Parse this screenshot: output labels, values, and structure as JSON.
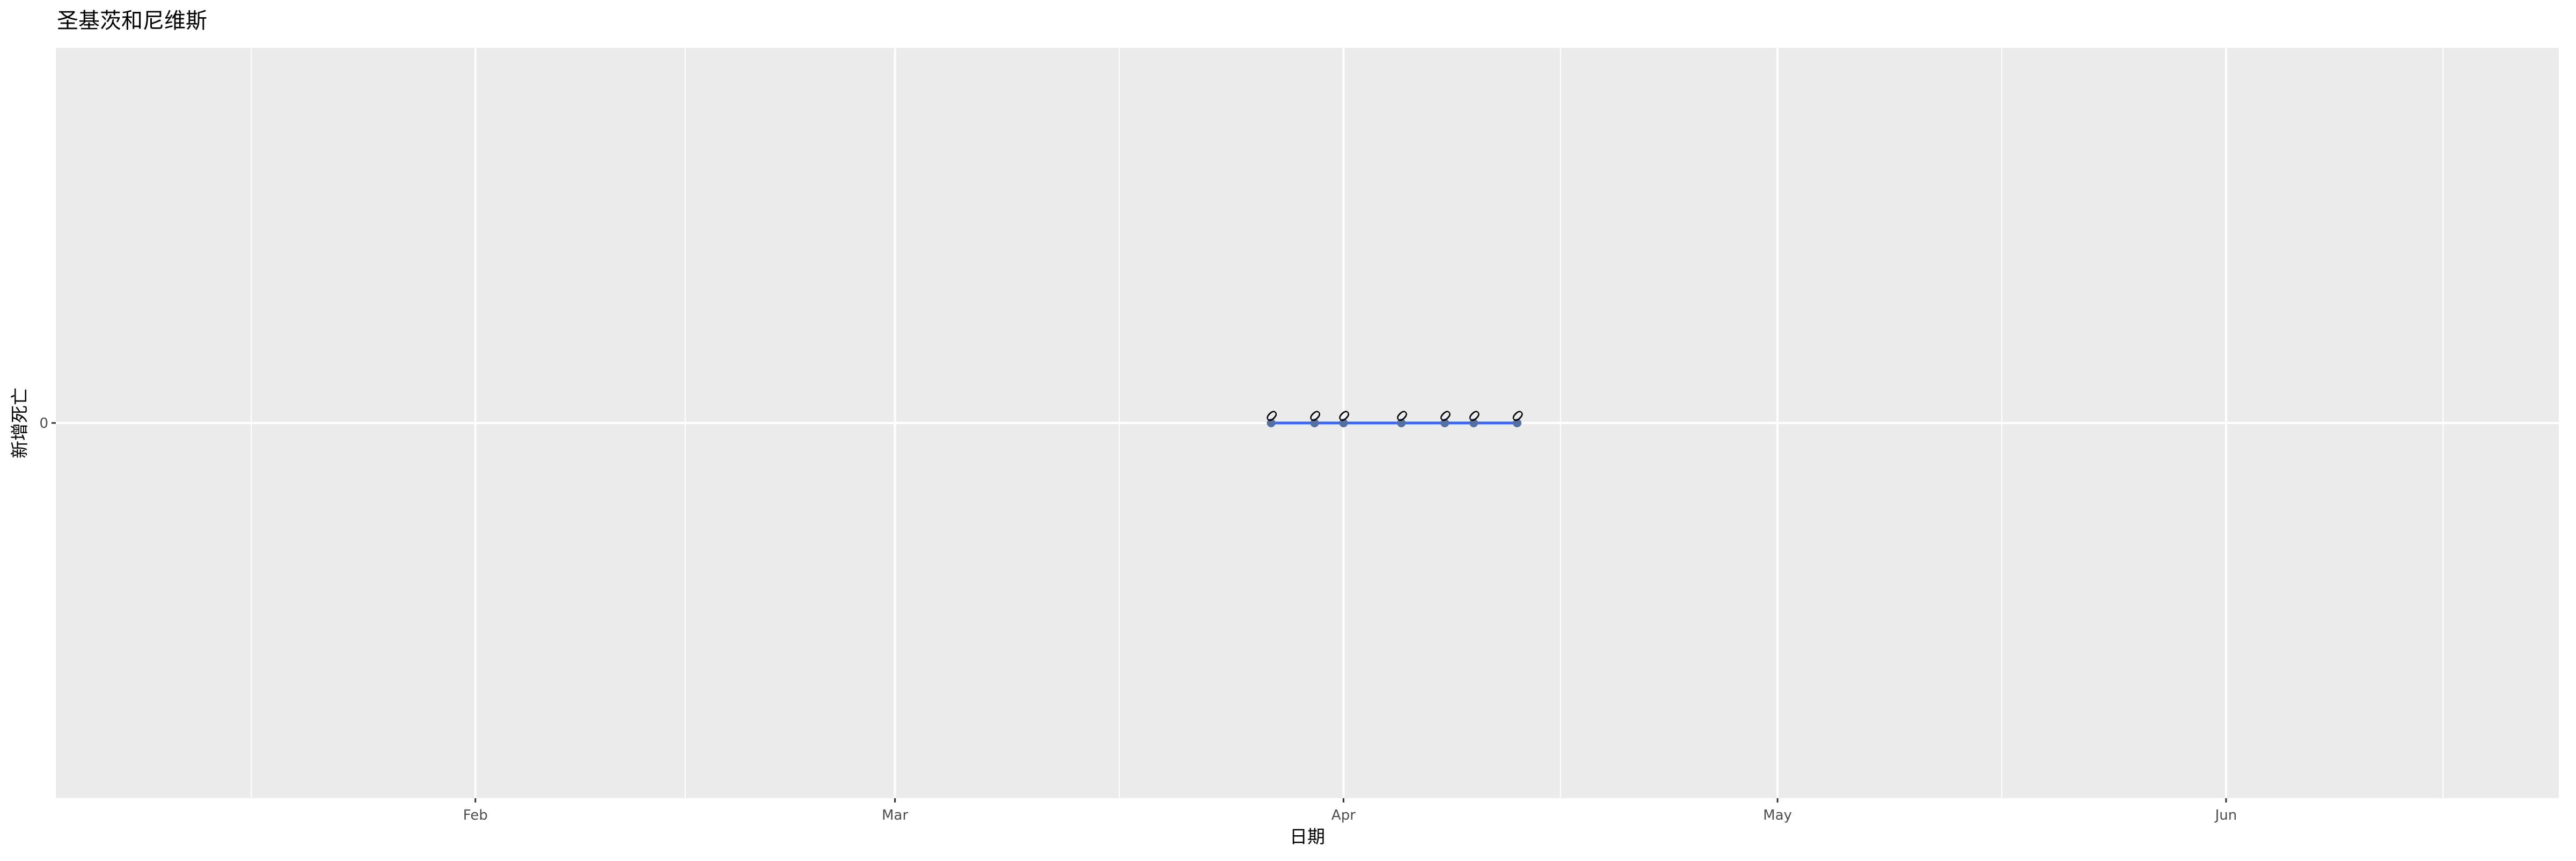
{
  "chart_data": {
    "type": "line",
    "title": "圣基茨和尼维斯",
    "xlabel": "日期",
    "ylabel": "新增死亡",
    "x_ticks": [
      {
        "date": "2020-02-01",
        "label": "Feb"
      },
      {
        "date": "2020-03-01",
        "label": "Mar"
      },
      {
        "date": "2020-04-01",
        "label": "Apr"
      },
      {
        "date": "2020-05-01",
        "label": "May"
      },
      {
        "date": "2020-06-01",
        "label": "Jun"
      }
    ],
    "y_ticks": [
      {
        "value": 0,
        "label": "0"
      }
    ],
    "xlim": [
      "2020-01-03",
      "2020-06-24"
    ],
    "ylim": [
      -0.05,
      0.05
    ],
    "grid": true,
    "series": [
      {
        "x": [
          "2020-03-27",
          "2020-03-30",
          "2020-04-01",
          "2020-04-05",
          "2020-04-08",
          "2020-04-10",
          "2020-04-13"
        ],
        "y": [
          0,
          0,
          0,
          0,
          0,
          0,
          0
        ],
        "data_labels": [
          "0",
          "0",
          "0",
          "0",
          "0",
          "0",
          "0"
        ]
      }
    ],
    "colors": {
      "panel": "#ebebeb",
      "grid": "#ffffff",
      "line": "#3366ff",
      "points": "#5470a0",
      "text": "#000000",
      "tick_text": "#4d4d4d"
    }
  }
}
